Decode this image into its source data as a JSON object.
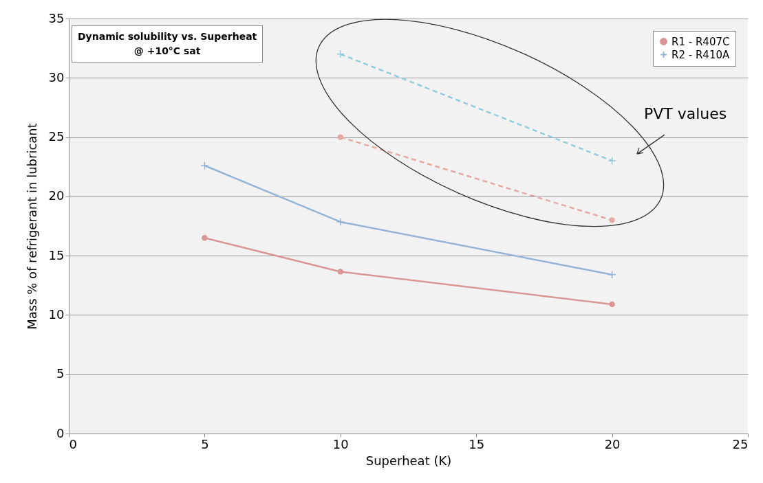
{
  "chart_data": {
    "type": "line",
    "title": "Dynamic solubility vs. Superheat",
    "subtitle": "@ +10°C sat",
    "xlabel": "Superheat (K)",
    "ylabel": "Mass % of refrigerant in lubricant",
    "series": [
      {
        "name": "R1 - R407C",
        "color": "#d99694",
        "marker": "circle",
        "x": [
          5,
          10,
          20
        ],
        "values": [
          16.5,
          13.65,
          10.9
        ]
      },
      {
        "name": "R2 - R410A",
        "color": "#95b3d7",
        "marker": "cross",
        "x": [
          5,
          10,
          20
        ],
        "values": [
          22.6,
          17.85,
          13.4
        ]
      },
      {
        "color": "#e6a8a3",
        "marker": "circle",
        "line_style": "dashed",
        "x": [
          10,
          20
        ],
        "values": [
          25,
          18
        ]
      },
      {
        "color": "#93cddd",
        "marker": "cross",
        "line_style": "dashed",
        "x": [
          10,
          20
        ],
        "values": [
          32,
          23
        ]
      }
    ],
    "annotations": [
      "PVT values"
    ],
    "xlim": [
      0,
      25
    ],
    "xticks": [
      0,
      5,
      10,
      15,
      20,
      25
    ],
    "ylim": [
      0,
      35
    ],
    "yticks": [
      0,
      5,
      10,
      15,
      20,
      25,
      30,
      35
    ],
    "grid": "y",
    "legend": "top right"
  }
}
